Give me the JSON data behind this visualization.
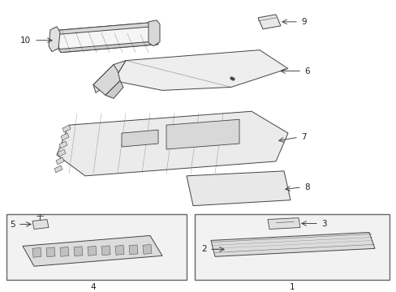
{
  "bg_color": "#ffffff",
  "fig_width": 4.89,
  "fig_height": 3.6,
  "dpi": 100,
  "line_color": "#444444",
  "fill_light": "#f5f5f5",
  "fill_mid": "#e8e8e8",
  "fill_dark": "#d8d8d8"
}
